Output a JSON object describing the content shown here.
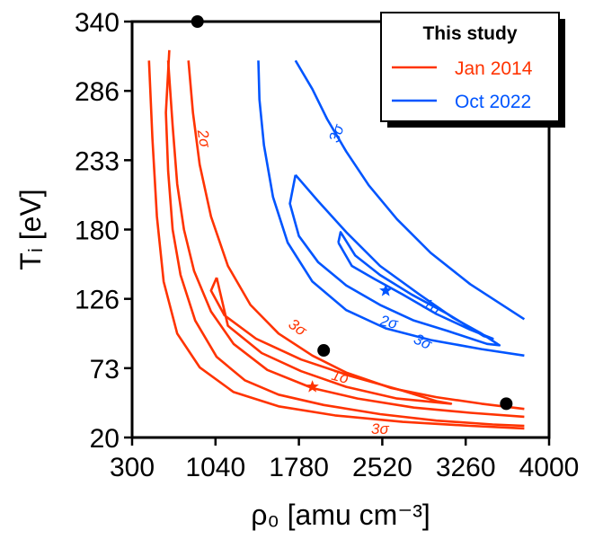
{
  "chart_data": {
    "type": "contour",
    "xlabel": "ρ₀ [amu cm⁻³]",
    "ylabel": "Tᵢ [eV]",
    "xlim": [
      300,
      4000
    ],
    "ylim": [
      20,
      340
    ],
    "x_ticks": [
      "300",
      "1040",
      "1780",
      "2520",
      "3260",
      "4000"
    ],
    "y_ticks": [
      "20",
      "73",
      "126",
      "180",
      "233",
      "286",
      "340"
    ],
    "grid": false,
    "legend": {
      "title": "This study",
      "placement": "top-right",
      "entries": [
        {
          "label": "Jan 2014",
          "color": "#ff3300"
        },
        {
          "label": "Oct 2022",
          "color": "#0055ff"
        }
      ]
    },
    "series": [
      {
        "name": "Jan 2014",
        "color": "#ff3300",
        "best_fit": {
          "x": 1900,
          "y": 59
        },
        "contours": [
          {
            "level": "1σ",
            "points": [
              [
                1050,
                143
              ],
              [
                1000,
                133
              ],
              [
                1120,
                114
              ],
              [
                1400,
                96
              ],
              [
                1800,
                80
              ],
              [
                2250,
                67
              ],
              [
                2700,
                56
              ],
              [
                3000,
                48
              ],
              [
                3130,
                46
              ],
              [
                2650,
                50
              ],
              [
                2200,
                59
              ],
              [
                1800,
                71
              ],
              [
                1450,
                85
              ],
              [
                1150,
                106
              ],
              [
                1050,
                143
              ]
            ]
          },
          {
            "level": "2σ",
            "points": [
              [
                800,
                310
              ],
              [
                840,
                270
              ],
              [
                900,
                230
              ],
              [
                1000,
                190
              ],
              [
                1150,
                152
              ],
              [
                1350,
                122
              ],
              [
                1600,
                100
              ],
              [
                1900,
                83
              ],
              [
                2200,
                70
              ],
              [
                2600,
                58
              ],
              [
                3000,
                51
              ],
              [
                3400,
                46
              ],
              [
                3780,
                42
              ]
            ]
          },
          {
            "level": "2σ",
            "points": [
              [
                620,
                310
              ],
              [
                660,
                260
              ],
              [
                700,
                215
              ],
              [
                760,
                180
              ],
              [
                850,
                148
              ],
              [
                1000,
                117
              ],
              [
                1200,
                92
              ],
              [
                1500,
                72
              ],
              [
                1900,
                58
              ],
              [
                2300,
                50
              ],
              [
                2800,
                43
              ],
              [
                3300,
                39
              ],
              [
                3780,
                36
              ]
            ]
          },
          {
            "level": "3σ",
            "points": [
              [
                630,
                318
              ],
              [
                600,
                270
              ],
              [
                620,
                225
              ],
              [
                660,
                180
              ],
              [
                730,
                145
              ],
              [
                860,
                110
              ],
              [
                1050,
                82
              ],
              [
                1300,
                64
              ],
              [
                1600,
                53
              ],
              [
                2000,
                45
              ],
              [
                2500,
                38
              ],
              [
                3000,
                33
              ],
              [
                3500,
                30
              ],
              [
                3780,
                29
              ]
            ]
          },
          {
            "level": "3σ",
            "points": [
              [
                450,
                310
              ],
              [
                480,
                250
              ],
              [
                520,
                190
              ],
              [
                580,
                140
              ],
              [
                700,
                100
              ],
              [
                900,
                74
              ],
              [
                1200,
                55
              ],
              [
                1600,
                44
              ],
              [
                2100,
                37
              ],
              [
                2700,
                32
              ],
              [
                3300,
                29
              ],
              [
                3780,
                27
              ]
            ]
          }
        ]
      },
      {
        "name": "Oct 2022",
        "color": "#0055ff",
        "best_fit": {
          "x": 2550,
          "y": 133
        },
        "contours": [
          {
            "level": "1σ",
            "points": [
              [
                2130,
                170
              ],
              [
                2150,
                178
              ],
              [
                2280,
                160
              ],
              [
                2500,
                145
              ],
              [
                2780,
                130
              ],
              [
                3100,
                115
              ],
              [
                3420,
                98
              ],
              [
                3500,
                96
              ],
              [
                3300,
                103
              ],
              [
                3000,
                115
              ],
              [
                2700,
                130
              ],
              [
                2450,
                142
              ],
              [
                2250,
                152
              ],
              [
                2130,
                170
              ]
            ]
          },
          {
            "level": "2σ",
            "points": [
              [
                1750,
                222
              ],
              [
                1700,
                200
              ],
              [
                1780,
                175
              ],
              [
                1950,
                155
              ],
              [
                2200,
                137
              ],
              [
                2500,
                122
              ],
              [
                2800,
                110
              ],
              [
                3100,
                102
              ],
              [
                3450,
                92
              ],
              [
                3560,
                91
              ],
              [
                3400,
                100
              ],
              [
                3150,
                112
              ],
              [
                2850,
                130
              ],
              [
                2500,
                152
              ],
              [
                2200,
                178
              ],
              [
                1950,
                202
              ],
              [
                1750,
                222
              ]
            ]
          },
          {
            "level": "3σ",
            "points": [
              [
                1420,
                310
              ],
              [
                1430,
                280
              ],
              [
                1470,
                245
              ],
              [
                1550,
                205
              ],
              [
                1680,
                170
              ],
              [
                1900,
                140
              ],
              [
                2200,
                118
              ],
              [
                2550,
                104
              ],
              [
                2950,
                95
              ],
              [
                3400,
                88
              ],
              [
                3780,
                83
              ]
            ]
          },
          {
            "level": "3σ",
            "points": [
              [
                1750,
                310
              ],
              [
                1900,
                288
              ],
              [
                2030,
                265
              ],
              [
                2200,
                240
              ],
              [
                2400,
                214
              ],
              [
                2650,
                188
              ],
              [
                2950,
                162
              ],
              [
                3300,
                138
              ],
              [
                3780,
                111
              ]
            ]
          }
        ]
      }
    ],
    "points": [
      {
        "x": 880,
        "y": 340,
        "color": "#000000"
      },
      {
        "x": 2000,
        "y": 87,
        "color": "#000000"
      },
      {
        "x": 3620,
        "y": 46,
        "color": "#000000"
      }
    ],
    "contour_labels": [
      {
        "text": "2σ",
        "x": 940,
        "y": 250,
        "color": "#ff3300",
        "rotate": 80
      },
      {
        "text": "3σ",
        "x": 1770,
        "y": 105,
        "color": "#ff3300",
        "rotate": 35
      },
      {
        "text": "1σ",
        "x": 2150,
        "y": 67,
        "color": "#ff3300",
        "rotate": 15
      },
      {
        "text": "3σ",
        "x": 2500,
        "y": 27,
        "color": "#ff3300",
        "rotate": 0
      },
      {
        "text": "3σ",
        "x": 2110,
        "y": 254,
        "color": "#0055ff",
        "rotate": -70
      },
      {
        "text": "1σ",
        "x": 2960,
        "y": 121,
        "color": "#0055ff",
        "rotate": 28
      },
      {
        "text": "2σ",
        "x": 2580,
        "y": 109,
        "color": "#0055ff",
        "rotate": 12
      },
      {
        "text": "3σ",
        "x": 2880,
        "y": 94,
        "color": "#0055ff",
        "rotate": 25
      }
    ]
  }
}
